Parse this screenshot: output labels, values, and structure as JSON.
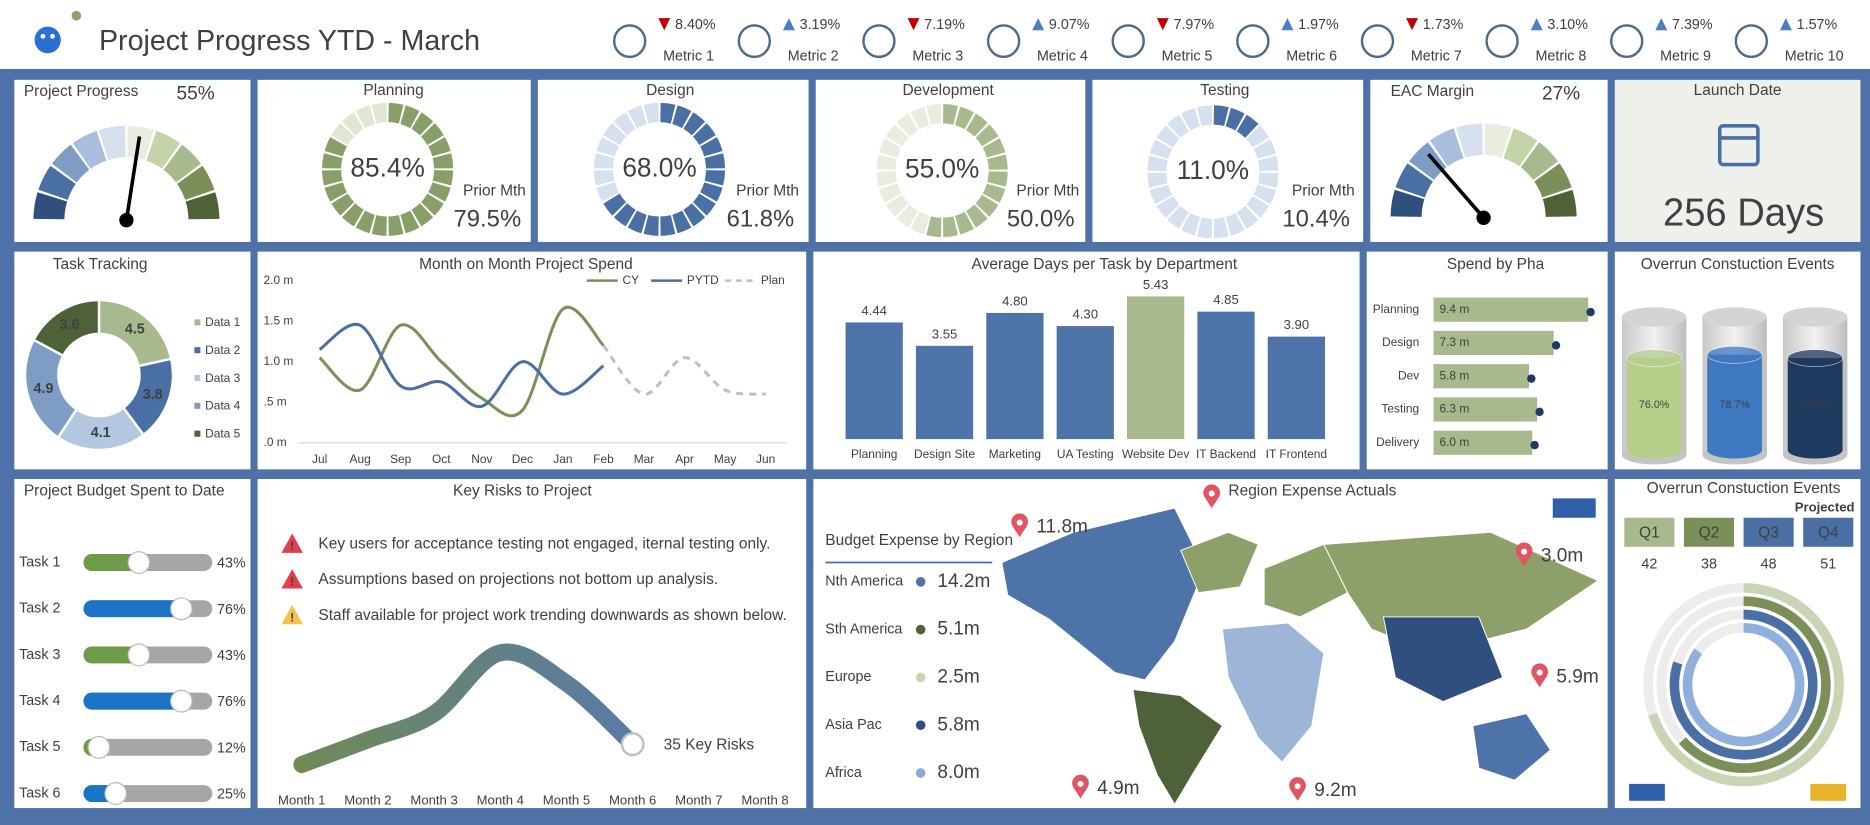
{
  "header": {
    "title": "Project Progress YTD - March"
  },
  "metrics": [
    {
      "label": "Metric 1",
      "change": "8.40%",
      "trend": "down"
    },
    {
      "label": "Metric 2",
      "change": "3.19%",
      "trend": "up"
    },
    {
      "label": "Metric 3",
      "change": "7.19%",
      "trend": "down"
    },
    {
      "label": "Metric 4",
      "change": "9.07%",
      "trend": "up"
    },
    {
      "label": "Metric 5",
      "change": "7.97%",
      "trend": "down"
    },
    {
      "label": "Metric 6",
      "change": "1.97%",
      "trend": "up"
    },
    {
      "label": "Metric 7",
      "change": "1.73%",
      "trend": "down"
    },
    {
      "label": "Metric 8",
      "change": "3.10%",
      "trend": "up"
    },
    {
      "label": "Metric 9",
      "change": "7.39%",
      "trend": "up"
    },
    {
      "label": "Metric 10",
      "change": "1.57%",
      "trend": "up"
    }
  ],
  "gauges": [
    {
      "type": "gauge",
      "title": "Project Progress",
      "value": 55,
      "value_label": "55%",
      "ylim": [
        0,
        100
      ]
    },
    {
      "type": "gauge",
      "title": "EAC Margin",
      "value": 27,
      "value_label": "27%",
      "ylim": [
        0,
        100
      ]
    }
  ],
  "progress": [
    {
      "type": "ring",
      "title": "Planning",
      "value": 85.4,
      "value_label": "85.4%",
      "prior_label": "Prior Mth",
      "prior": "79.5%",
      "color": "#8a9e6a",
      "light": "#dfe6d2",
      "ylim": [
        0,
        100
      ]
    },
    {
      "type": "ring",
      "title": "Design",
      "value": 68.0,
      "value_label": "68.0%",
      "prior_label": "Prior Mth",
      "prior": "61.8%",
      "color": "#4a6fa5",
      "light": "#d6e0ee",
      "ylim": [
        0,
        100
      ]
    },
    {
      "type": "ring",
      "title": "Development",
      "value": 55.0,
      "value_label": "55.0%",
      "prior_label": "Prior Mth",
      "prior": "50.0%",
      "color": "#a9b98e",
      "light": "#e8ede0",
      "ylim": [
        0,
        100
      ]
    },
    {
      "type": "ring",
      "title": "Testing",
      "value": 11.0,
      "value_label": "11.0%",
      "prior_label": "Prior Mth",
      "prior": "10.4%",
      "color": "#4a6fa5",
      "light": "#d6e0ee",
      "ylim": [
        0,
        100
      ]
    }
  ],
  "launch": {
    "title": "Launch Date",
    "value": "256 Days"
  },
  "task_tracking": {
    "type": "pie",
    "title": "Task Tracking",
    "categories": [
      "Data 1",
      "Data 2",
      "Data 3",
      "Data 4",
      "Data 5"
    ],
    "values": [
      4.5,
      3.8,
      4.1,
      4.9,
      3.6
    ],
    "colors": [
      "#a9b98e",
      "#4a6fa5",
      "#b4c7e0",
      "#7f9cc5",
      "#4f6138"
    ]
  },
  "spend": {
    "type": "line",
    "title": "Month on Month Project Spend",
    "categories": [
      "Jul",
      "Aug",
      "Sep",
      "Oct",
      "Nov",
      "Dec",
      "Jan",
      "Feb",
      "Mar",
      "Apr",
      "May",
      "Jun"
    ],
    "series": [
      {
        "name": "CY",
        "color": "#7b8f58",
        "dashed": false,
        "values": [
          1.05,
          0.65,
          1.45,
          1.0,
          0.55,
          0.4,
          1.65,
          1.2,
          null,
          null,
          null,
          null
        ]
      },
      {
        "name": "PYTD",
        "color": "#4a6fa5",
        "dashed": false,
        "values": [
          1.15,
          1.45,
          0.7,
          0.75,
          0.45,
          1.0,
          0.6,
          0.95,
          null,
          null,
          null,
          null
        ]
      },
      {
        "name": "Plan",
        "color": "#bfbfbf",
        "dashed": true,
        "values": [
          null,
          null,
          null,
          null,
          null,
          null,
          null,
          1.2,
          0.6,
          1.05,
          0.65,
          0.6
        ]
      }
    ],
    "ylim": [
      0,
      2
    ],
    "yticks": [
      {
        "value": 0,
        "label": ".0 m"
      },
      {
        "value": 0.5,
        "label": ".5 m"
      },
      {
        "value": 1,
        "label": "1.0 m"
      },
      {
        "value": 1.5,
        "label": "1.5 m"
      },
      {
        "value": 2,
        "label": "2.0 m"
      }
    ],
    "grid": false
  },
  "avg_days": {
    "type": "bar",
    "title": "Average Days per Task by Department",
    "categories": [
      "Planning",
      "Design Site",
      "Marketing",
      "UA Testing",
      "Website Dev",
      "IT Backend",
      "IT Frontend"
    ],
    "values": [
      4.44,
      3.55,
      4.8,
      4.3,
      5.43,
      4.85,
      3.9
    ],
    "value_labels": [
      "4.44",
      "3.55",
      "4.80",
      "4.30",
      "5.43",
      "4.85",
      "3.90"
    ],
    "colors": [
      "#4e73a8",
      "#4e73a8",
      "#4e73a8",
      "#4e73a8",
      "#a9b98e",
      "#4e73a8",
      "#4e73a8"
    ],
    "ylim": [
      0,
      5.5
    ]
  },
  "phase": {
    "type": "barh",
    "title": "Spend by Pha",
    "categories": [
      "Planning",
      "Design",
      "Dev",
      "Testing",
      "Delivery"
    ],
    "values": [
      9.4,
      7.3,
      5.8,
      6.3,
      6.0
    ],
    "value_labels": [
      "9.4 m",
      "7.3 m",
      "5.8 m",
      "6.3 m",
      "6.0 m"
    ],
    "color": "#a9b98e",
    "xlim": [
      0,
      10
    ]
  },
  "cylinders": {
    "type": "cylinder",
    "title": "Overrun Constuction Events",
    "values": [
      76.0,
      78.7,
      76.0
    ],
    "value_labels": [
      "76.0%",
      "78.7%",
      "76.0%"
    ],
    "colors": [
      "#b5cf8a",
      "#3f79c2",
      "#1f3a5f"
    ],
    "ylim": [
      0,
      100
    ]
  },
  "budget": {
    "type": "slider",
    "title": "Project Budget Spent to Date",
    "categories": [
      "Task 1",
      "Task 2",
      "Task 3",
      "Task 4",
      "Task 5",
      "Task 6"
    ],
    "values": [
      43,
      76,
      43,
      76,
      12,
      25
    ],
    "value_labels": [
      "43%",
      "76%",
      "43%",
      "76%",
      "12%",
      "25%"
    ],
    "colors": [
      "#6e9b4a",
      "#1a73c5",
      "#6e9b4a",
      "#1a73c5",
      "#6e9b4a",
      "#1a73c5"
    ],
    "xlim": [
      0,
      100
    ]
  },
  "risks": {
    "title": "Key Risks to Project",
    "items": [
      {
        "text": "Key users for acceptance testing not engaged, iternal testing only.",
        "severity": "high"
      },
      {
        "text": "Assumptions based on projections not bottom up analysis.",
        "severity": "high"
      },
      {
        "text": "Staff available for project work trending downwards as shown below.",
        "severity": "medium"
      }
    ],
    "chart": {
      "type": "line",
      "categories": [
        "Month 1",
        "Month 2",
        "Month 3",
        "Month 4",
        "Month 5",
        "Month 6",
        "Month 7",
        "Month 8"
      ],
      "values": [
        1.5,
        3.2,
        5.0,
        9.2,
        7.1,
        2.9,
        null,
        null
      ],
      "ylim": [
        0,
        10
      ],
      "annotation": "35 Key Risks"
    }
  },
  "region": {
    "title": "Region Expense Actuals",
    "table_title": "Budget Expense by Region",
    "rows": [
      {
        "region": "Nth America",
        "amount": "14.2m",
        "color": "#4e73a8"
      },
      {
        "region": "Sth America",
        "amount": "5.1m",
        "color": "#4f6138"
      },
      {
        "region": "Europe",
        "amount": "2.5m",
        "color": "#c9d4b4"
      },
      {
        "region": "Asia Pac",
        "amount": "5.8m",
        "color": "#2f4f7f"
      },
      {
        "region": "Africa",
        "amount": "8.0m",
        "color": "#8caad3"
      }
    ],
    "pins": [
      {
        "label": "11.8m",
        "color": "#404040"
      },
      {
        "label": "3.0m",
        "color": "#c00000"
      },
      {
        "label": "5.9m",
        "color": "#c00000"
      },
      {
        "label": "4.9m",
        "color": "#404040"
      },
      {
        "label": "9.2m",
        "color": "#c00000"
      }
    ]
  },
  "quarters": {
    "type": "radial",
    "title": "Overrun Constuction Events",
    "note": "Projected",
    "categories": [
      "Q1",
      "Q2",
      "Q3",
      "Q4"
    ],
    "values": [
      42,
      38,
      48,
      51
    ],
    "colors": [
      "#a9b98e",
      "#7b8f58",
      "#4a6fa5",
      "#4a6fa5"
    ],
    "label_colors": [
      "#ffffff",
      "#ffffff",
      "#ffffff",
      "#e0313f"
    ],
    "ring_colors": [
      "#c9d4b4",
      "#7b8f58",
      "#4a6fa5",
      "#8fb0dc"
    ],
    "xlim": [
      0,
      60
    ]
  }
}
